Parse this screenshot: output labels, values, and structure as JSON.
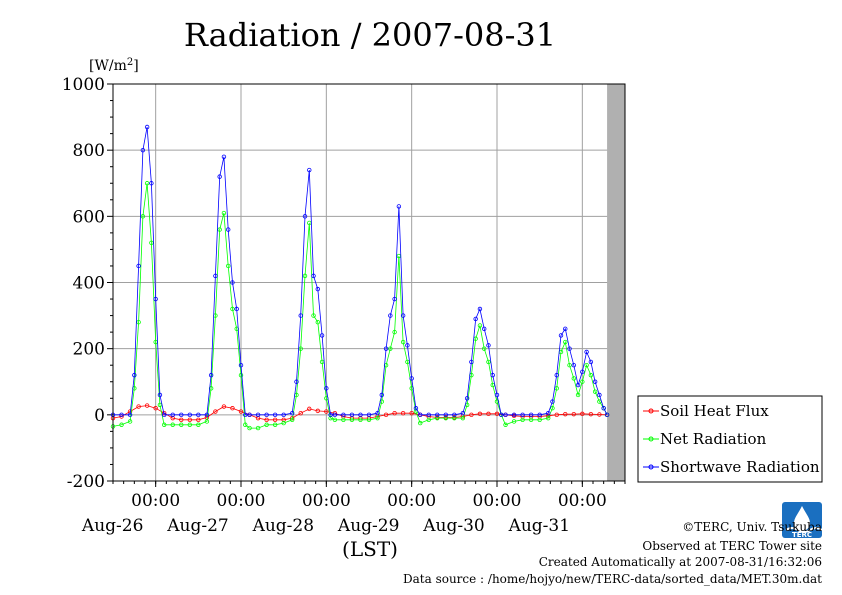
{
  "chart_data": {
    "type": "line",
    "title": "Radiation / 2007-08-31",
    "ylabel_unit": "[W/m",
    "ylabel_sup": "2",
    "ylabel_close": "]",
    "xlabel": "(LST)",
    "ylim": [
      -200,
      1000
    ],
    "yticks": [
      -200,
      0,
      200,
      400,
      600,
      800,
      1000
    ],
    "xlim": [
      0,
      6.0
    ],
    "x_units": "days from 2007-08-25 12:00 LST",
    "xticks": [
      {
        "x": 0.5,
        "time": "00:00",
        "date": "Aug-26"
      },
      {
        "x": 1.5,
        "time": "00:00",
        "date": "Aug-27"
      },
      {
        "x": 2.5,
        "time": "00:00",
        "date": "Aug-28"
      },
      {
        "x": 3.5,
        "time": "00:00",
        "date": "Aug-29"
      },
      {
        "x": 4.5,
        "time": "00:00",
        "date": "Aug-30"
      },
      {
        "x": 5.5,
        "time": "00:00",
        "date": "Aug-31"
      }
    ],
    "nodata_from": 5.79,
    "grid": true,
    "legend_position": "right-bottom",
    "series": [
      {
        "name": "Soil Heat Flux",
        "color": "#ff0000",
        "x": [
          0.0,
          0.1,
          0.2,
          0.3,
          0.4,
          0.5,
          0.6,
          0.7,
          0.8,
          0.9,
          1.0,
          1.1,
          1.2,
          1.3,
          1.4,
          1.5,
          1.6,
          1.7,
          1.8,
          1.9,
          2.0,
          2.1,
          2.2,
          2.3,
          2.4,
          2.5,
          2.6,
          2.7,
          2.8,
          2.9,
          3.0,
          3.1,
          3.2,
          3.3,
          3.4,
          3.5,
          3.6,
          3.7,
          3.8,
          3.9,
          4.0,
          4.1,
          4.2,
          4.3,
          4.4,
          4.5,
          4.6,
          4.7,
          4.8,
          4.9,
          5.0,
          5.1,
          5.2,
          5.3,
          5.4,
          5.5,
          5.6,
          5.7,
          5.79
        ],
        "values": [
          -10,
          -5,
          10,
          25,
          28,
          20,
          5,
          -10,
          -15,
          -15,
          -15,
          -8,
          10,
          25,
          20,
          10,
          0,
          -10,
          -15,
          -15,
          -15,
          -10,
          5,
          18,
          12,
          10,
          5,
          -5,
          -10,
          -10,
          -10,
          -5,
          0,
          5,
          5,
          5,
          0,
          -5,
          -8,
          -8,
          -8,
          -5,
          0,
          3,
          3,
          3,
          0,
          -3,
          -5,
          -5,
          -5,
          -3,
          0,
          2,
          2,
          3,
          2,
          1,
          0
        ]
      },
      {
        "name": "Net Radiation",
        "color": "#00ff00",
        "x": [
          0.0,
          0.1,
          0.2,
          0.25,
          0.3,
          0.35,
          0.4,
          0.45,
          0.5,
          0.55,
          0.6,
          0.7,
          0.8,
          0.9,
          1.0,
          1.1,
          1.15,
          1.2,
          1.25,
          1.3,
          1.35,
          1.4,
          1.45,
          1.5,
          1.55,
          1.6,
          1.7,
          1.8,
          1.9,
          2.0,
          2.1,
          2.15,
          2.2,
          2.25,
          2.3,
          2.35,
          2.4,
          2.45,
          2.5,
          2.55,
          2.6,
          2.7,
          2.8,
          2.9,
          3.0,
          3.1,
          3.15,
          3.2,
          3.25,
          3.3,
          3.35,
          3.4,
          3.45,
          3.5,
          3.55,
          3.6,
          3.7,
          3.8,
          3.9,
          4.0,
          4.1,
          4.15,
          4.2,
          4.25,
          4.3,
          4.35,
          4.4,
          4.45,
          4.5,
          4.55,
          4.6,
          4.7,
          4.8,
          4.9,
          5.0,
          5.1,
          5.15,
          5.2,
          5.25,
          5.3,
          5.35,
          5.4,
          5.45,
          5.5,
          5.55,
          5.6,
          5.65,
          5.7,
          5.75,
          5.79
        ],
        "values": [
          -35,
          -30,
          -20,
          80,
          280,
          600,
          700,
          520,
          220,
          30,
          -30,
          -30,
          -30,
          -30,
          -30,
          -20,
          80,
          300,
          560,
          610,
          450,
          320,
          260,
          120,
          -30,
          -40,
          -40,
          -30,
          -30,
          -25,
          -15,
          60,
          200,
          420,
          580,
          300,
          280,
          160,
          50,
          -10,
          -15,
          -15,
          -15,
          -15,
          -15,
          -10,
          40,
          150,
          200,
          250,
          480,
          220,
          160,
          80,
          10,
          -25,
          -15,
          -10,
          -10,
          -10,
          -10,
          30,
          120,
          230,
          270,
          200,
          160,
          90,
          40,
          0,
          -30,
          -20,
          -15,
          -15,
          -15,
          -10,
          20,
          80,
          190,
          220,
          150,
          110,
          60,
          100,
          150,
          120,
          70,
          40,
          20,
          0
        ]
      },
      {
        "name": "Shortwave Radiation",
        "color": "#0000ff",
        "x": [
          0.0,
          0.1,
          0.2,
          0.25,
          0.3,
          0.35,
          0.4,
          0.45,
          0.5,
          0.55,
          0.6,
          0.7,
          0.8,
          0.9,
          1.0,
          1.1,
          1.15,
          1.2,
          1.25,
          1.3,
          1.35,
          1.4,
          1.45,
          1.5,
          1.55,
          1.6,
          1.7,
          1.8,
          1.9,
          2.0,
          2.1,
          2.15,
          2.2,
          2.25,
          2.3,
          2.35,
          2.4,
          2.45,
          2.5,
          2.55,
          2.6,
          2.7,
          2.8,
          2.9,
          3.0,
          3.1,
          3.15,
          3.2,
          3.25,
          3.3,
          3.35,
          3.4,
          3.45,
          3.5,
          3.55,
          3.6,
          3.7,
          3.8,
          3.9,
          4.0,
          4.1,
          4.15,
          4.2,
          4.25,
          4.3,
          4.35,
          4.4,
          4.45,
          4.5,
          4.55,
          4.6,
          4.7,
          4.8,
          4.9,
          5.0,
          5.1,
          5.15,
          5.2,
          5.25,
          5.3,
          5.35,
          5.4,
          5.45,
          5.5,
          5.55,
          5.6,
          5.65,
          5.7,
          5.75,
          5.79
        ],
        "values": [
          0,
          0,
          0,
          120,
          450,
          800,
          870,
          700,
          350,
          60,
          0,
          0,
          0,
          0,
          0,
          0,
          120,
          420,
          720,
          780,
          560,
          400,
          320,
          150,
          0,
          0,
          0,
          0,
          0,
          0,
          5,
          100,
          300,
          600,
          740,
          420,
          380,
          240,
          80,
          0,
          0,
          0,
          0,
          0,
          0,
          5,
          60,
          200,
          300,
          350,
          630,
          300,
          210,
          110,
          20,
          0,
          0,
          0,
          0,
          0,
          5,
          50,
          160,
          290,
          320,
          260,
          210,
          120,
          60,
          0,
          0,
          0,
          0,
          0,
          0,
          5,
          40,
          120,
          240,
          260,
          200,
          150,
          90,
          130,
          190,
          160,
          100,
          60,
          20,
          0
        ]
      }
    ]
  },
  "footer": {
    "copyright": "©TERC, Univ. Tsukuba",
    "observed": "Observed at TERC Tower site",
    "created": "Created Automatically at 2007-08-31/16:32:06",
    "source": "Data source : /home/hojyo/new/TERC-data/sorted_data/MET.30m.dat"
  },
  "logo": {
    "text": "TERC",
    "color": "#1a6fc0"
  }
}
